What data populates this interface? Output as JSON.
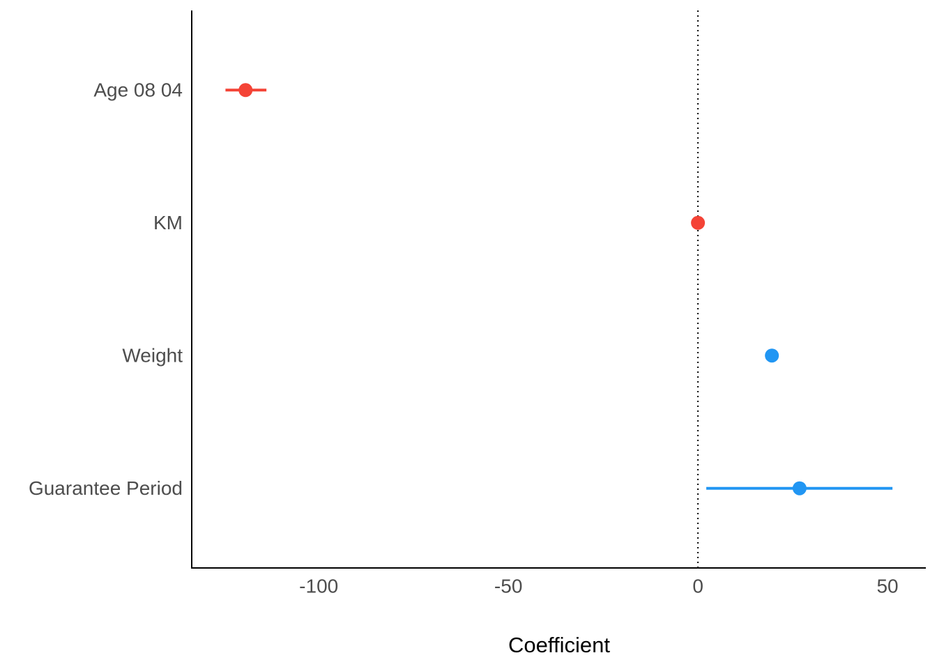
{
  "chart_data": {
    "type": "coefficient",
    "x_label": "Coefficient",
    "categories": [
      "Age 08 04",
      "KM",
      "Weight",
      "Guarantee Period"
    ],
    "values": [
      -119.3,
      0,
      19.5,
      26.8
    ],
    "lower": [
      -124.6,
      null,
      null,
      2.2
    ],
    "upper": [
      -113.8,
      null,
      null,
      51.3
    ],
    "colors": [
      "#f44336",
      "#f44336",
      "#2196f3",
      "#2196f3"
    ],
    "xlim": [
      -133.5,
      60.1
    ],
    "xticks": [
      -100,
      -50,
      0,
      50
    ],
    "reference_line": 0
  }
}
